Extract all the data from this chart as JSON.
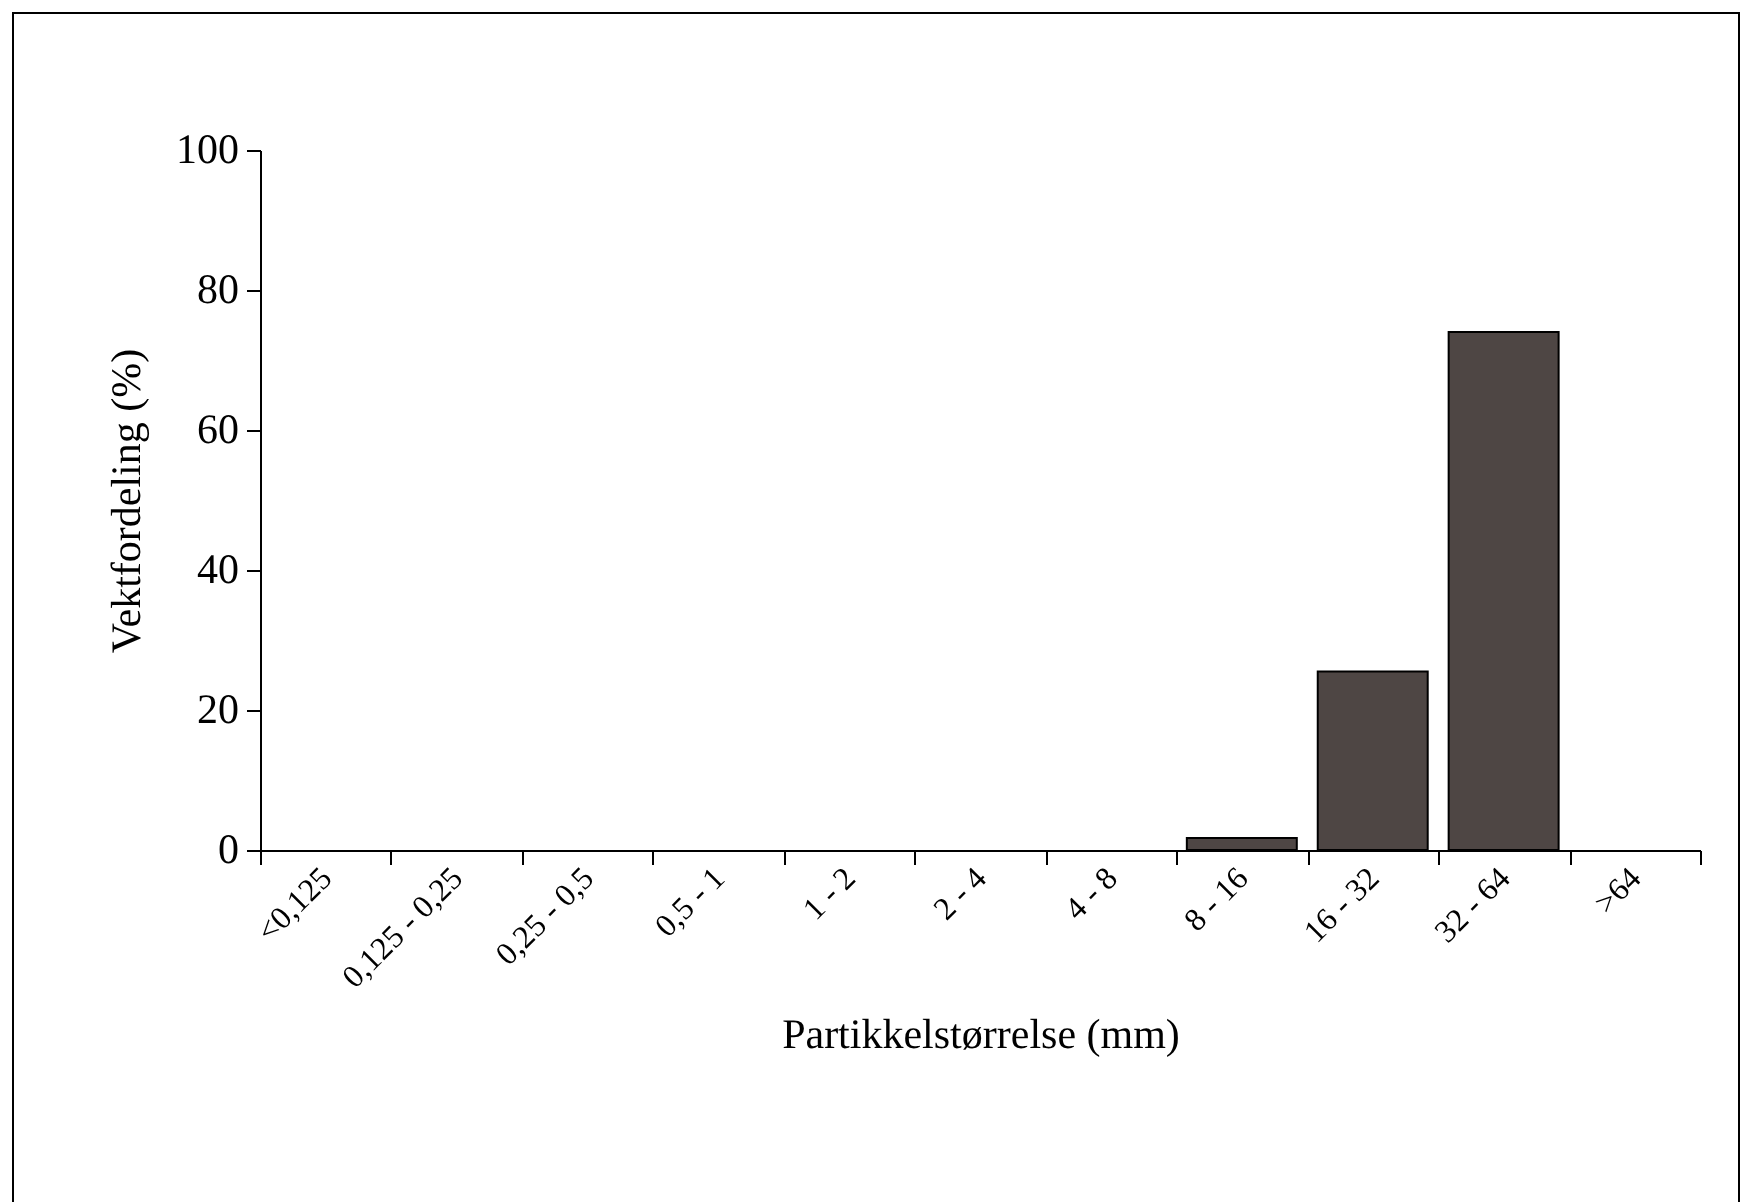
{
  "chart_data": {
    "type": "bar",
    "xlabel": "Partikkelstørrelse (mm)",
    "ylabel": "Vektfordeling (%)",
    "categories": [
      "<0,125",
      "0,125 - 0,25",
      "0,25 - 0,5",
      "0,5 - 1",
      "1 - 2",
      "2 - 4",
      "4 - 8",
      "8 - 16",
      "16 - 32",
      "32 - 64",
      ">64"
    ],
    "values": [
      0,
      0,
      0,
      0,
      0,
      0,
      0,
      1.7,
      25.5,
      74,
      0
    ],
    "color": "#4e4644",
    "ylim": [
      0,
      100
    ],
    "yticks": [
      0,
      20,
      40,
      60,
      80,
      100
    ],
    "grid": false
  }
}
